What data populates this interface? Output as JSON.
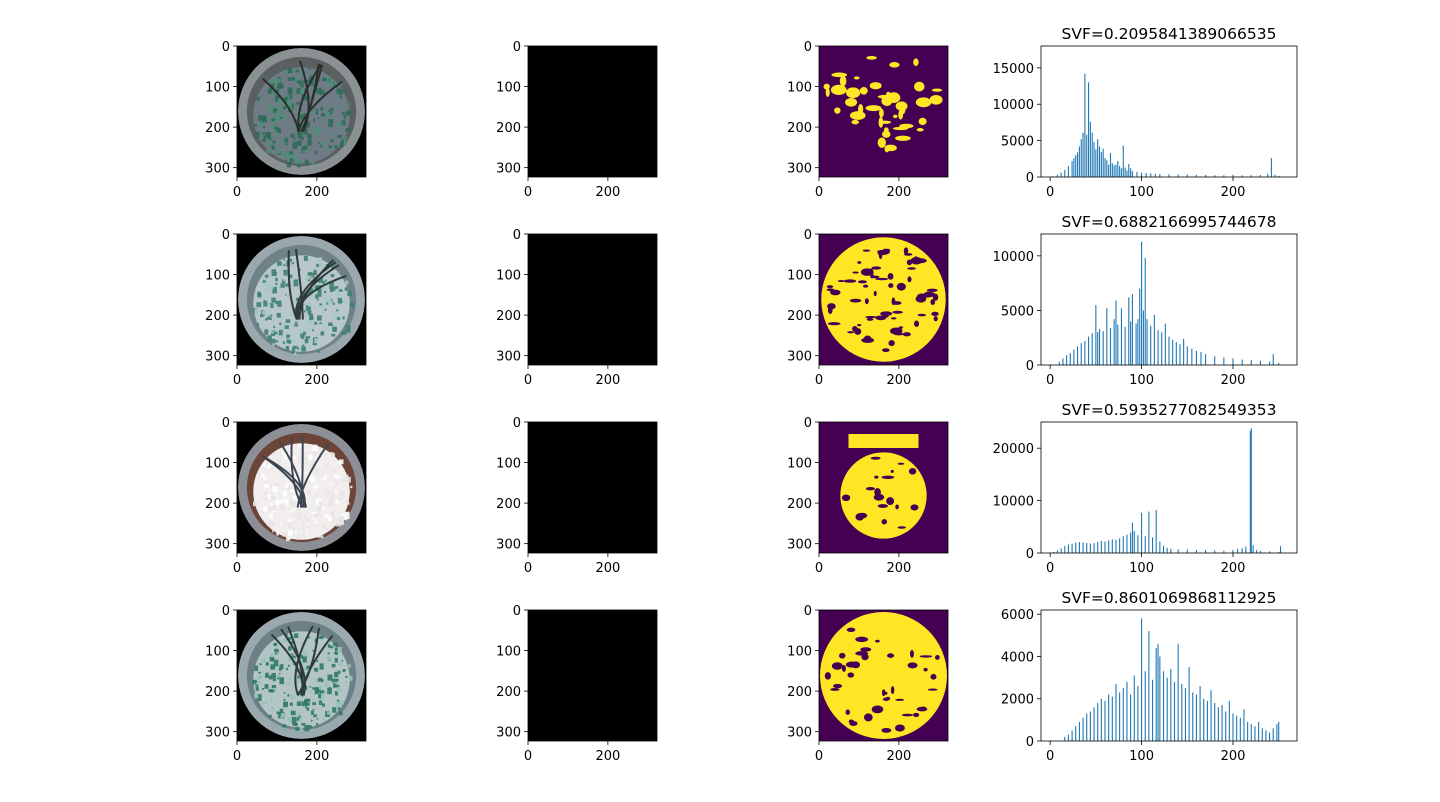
{
  "figure": {
    "rows": 4,
    "columns": [
      "fisheye-photo",
      "smoothed-photo",
      "sky-mask",
      "histogram"
    ]
  },
  "image_panels": {
    "x_ticks": [
      0,
      200
    ],
    "y_ticks": [
      0,
      100,
      200,
      300
    ],
    "extent": 323
  },
  "colors": {
    "sky": "#fde725",
    "non_sky": "#440154",
    "hist_bar": "#1f77b4",
    "background": "#000000"
  },
  "rows": [
    {
      "photo_scene": "green-canopy",
      "photo_colors": {
        "bg": "#2f3a37",
        "ring": "#8a9192",
        "ring_inner": "#59605f",
        "leaves": "#2f6b56",
        "leaf_hi": "#4d8f77",
        "trunk": "#2c2e2c",
        "sky": "#6f7c86"
      },
      "smooth_colors": {
        "bg": "#3c4744",
        "ring": "#8b9395",
        "ring_inner": "#5d6664",
        "leaves": "#3b6f60",
        "leaf_hi": "#58917f",
        "trunk": "#323634",
        "sky": "#7b878e"
      },
      "sky_fraction_note": "sparse",
      "chart_data": {
        "type": "bar",
        "title": "SVF=0.2095841389066535",
        "xlim": [
          -10,
          270
        ],
        "ylim": [
          0,
          18000
        ],
        "xticks": [
          0,
          100,
          200
        ],
        "yticks": [
          0,
          5000,
          10000,
          15000
        ],
        "x": [
          3,
          8,
          12,
          16,
          20,
          24,
          26,
          28,
          30,
          32,
          34,
          36,
          38,
          40,
          42,
          44,
          46,
          48,
          50,
          52,
          54,
          56,
          58,
          60,
          62,
          64,
          66,
          68,
          70,
          72,
          74,
          76,
          78,
          80,
          82,
          84,
          86,
          88,
          90,
          95,
          100,
          105,
          110,
          115,
          120,
          130,
          140,
          150,
          160,
          170,
          180,
          190,
          200,
          210,
          220,
          230,
          238,
          242,
          246,
          250
        ],
        "values": [
          100,
          300,
          600,
          1000,
          1500,
          2200,
          2600,
          3000,
          3400,
          4200,
          5200,
          6100,
          14200,
          5800,
          13000,
          7600,
          6100,
          4800,
          3800,
          5200,
          4200,
          3400,
          3900,
          2600,
          2300,
          1700,
          3300,
          1900,
          1600,
          1700,
          2200,
          1500,
          1200,
          4300,
          1300,
          900,
          1800,
          1200,
          800,
          700,
          600,
          550,
          500,
          450,
          400,
          380,
          350,
          320,
          300,
          280,
          260,
          240,
          300,
          230,
          250,
          280,
          450,
          2600,
          300,
          150
        ]
      }
    },
    {
      "photo_scene": "green-canopy-bright",
      "photo_colors": {
        "bg": "#4d6b6e",
        "ring": "#9aa7ac",
        "ring_inner": "#6e8287",
        "leaves": "#3f7f72",
        "leaf_hi": "#a8c9c5",
        "trunk": "#2d3a38",
        "sky": "#b7c7cc"
      },
      "smooth_colors": {
        "bg": "#57716f",
        "ring": "#9fadb1",
        "ring_inner": "#708487",
        "leaves": "#4b8679",
        "leaf_hi": "#8fb5ad",
        "trunk": "#34403f",
        "sky": "#a9bcc0"
      },
      "sky_fraction_note": "dense",
      "chart_data": {
        "type": "bar",
        "title": "SVF=0.6882166995744678",
        "xlim": [
          -10,
          270
        ],
        "ylim": [
          0,
          12000
        ],
        "xticks": [
          0,
          100,
          200
        ],
        "yticks": [
          0,
          5000,
          10000
        ],
        "x": [
          10,
          14,
          18,
          22,
          26,
          30,
          34,
          38,
          42,
          46,
          50,
          52,
          54,
          58,
          62,
          66,
          70,
          72,
          74,
          78,
          82,
          86,
          88,
          90,
          94,
          96,
          98,
          100,
          102,
          104,
          106,
          110,
          114,
          118,
          122,
          126,
          130,
          134,
          138,
          142,
          146,
          150,
          155,
          160,
          165,
          170,
          180,
          190,
          200,
          210,
          220,
          230,
          240,
          244,
          250
        ],
        "values": [
          300,
          600,
          900,
          1100,
          1400,
          1700,
          2000,
          2200,
          2600,
          2900,
          5500,
          3000,
          3300,
          3100,
          5200,
          3400,
          4200,
          5900,
          3700,
          5200,
          3500,
          6200,
          4000,
          6500,
          3800,
          4200,
          7000,
          11300,
          5000,
          9800,
          4200,
          3600,
          4600,
          3200,
          3000,
          3800,
          2600,
          2300,
          2100,
          1900,
          2400,
          1700,
          1500,
          1300,
          1200,
          1000,
          800,
          700,
          600,
          500,
          450,
          400,
          300,
          1000,
          200
        ]
      }
    },
    {
      "photo_scene": "white-sky-bare-branches",
      "photo_colors": {
        "bg": "#5a6068",
        "ring": "#8c9096",
        "ring_inner": "#6c4438",
        "leaves": "#e9e6e6",
        "leaf_hi": "#ffffff",
        "trunk": "#3c4753",
        "sky": "#f2eeee"
      },
      "smooth_colors": {
        "bg": "#646a71",
        "ring": "#939aa1",
        "ring_inner": "#8a5a4f",
        "leaves": "#dcdadc",
        "leaf_hi": "#eeecee",
        "trunk": "#4a5663",
        "sky": "#e2e0e3"
      },
      "sky_fraction_note": "center-disc",
      "chart_data": {
        "type": "bar",
        "title": "SVF=0.5935277082549353",
        "xlim": [
          -10,
          270
        ],
        "ylim": [
          0,
          25000
        ],
        "xticks": [
          0,
          100,
          200
        ],
        "yticks": [
          0,
          10000,
          20000
        ],
        "x": [
          4,
          8,
          12,
          16,
          20,
          24,
          28,
          32,
          36,
          40,
          44,
          48,
          52,
          56,
          60,
          64,
          68,
          72,
          76,
          80,
          84,
          88,
          90,
          92,
          96,
          100,
          104,
          108,
          112,
          116,
          120,
          124,
          128,
          132,
          140,
          150,
          160,
          170,
          180,
          190,
          200,
          205,
          210,
          214,
          219,
          220,
          222,
          226,
          230,
          240,
          250,
          252
        ],
        "values": [
          200,
          500,
          900,
          1300,
          1600,
          1800,
          2000,
          2100,
          2000,
          1900,
          1800,
          1900,
          2100,
          2300,
          2200,
          2400,
          2600,
          2500,
          2800,
          3200,
          3500,
          3900,
          5800,
          4200,
          3400,
          7700,
          3200,
          7900,
          3000,
          8200,
          2200,
          1400,
          1000,
          800,
          700,
          650,
          600,
          550,
          500,
          450,
          600,
          800,
          900,
          1200,
          23300,
          23800,
          1500,
          600,
          400,
          300,
          200,
          1300
        ]
      }
    },
    {
      "photo_scene": "green-canopy-wide",
      "photo_colors": {
        "bg": "#4c6168",
        "ring": "#9aa9ae",
        "ring_inner": "#6d8086",
        "leaves": "#2f7a62",
        "leaf_hi": "#9cc1b6",
        "trunk": "#2d3b38",
        "sky": "#b4c5c8"
      },
      "smooth_colors": {
        "bg": "#566a70",
        "ring": "#a2afb3",
        "ring_inner": "#738589",
        "leaves": "#3f8570",
        "leaf_hi": "#88b3a5",
        "trunk": "#344240",
        "sky": "#a7babd"
      },
      "sky_fraction_note": "full-disc",
      "chart_data": {
        "type": "bar",
        "title": "SVF=0.8601069868112925",
        "xlim": [
          -10,
          270
        ],
        "ylim": [
          0,
          6200
        ],
        "xticks": [
          0,
          100,
          200
        ],
        "yticks": [
          0,
          2000,
          4000,
          6000
        ],
        "x": [
          16,
          20,
          24,
          28,
          32,
          36,
          40,
          44,
          48,
          52,
          56,
          60,
          64,
          68,
          72,
          76,
          80,
          84,
          88,
          92,
          96,
          100,
          104,
          108,
          112,
          116,
          118,
          120,
          124,
          128,
          132,
          136,
          140,
          144,
          148,
          152,
          156,
          160,
          164,
          168,
          172,
          176,
          180,
          184,
          188,
          192,
          196,
          200,
          204,
          208,
          212,
          216,
          220,
          224,
          228,
          232,
          236,
          240,
          244,
          248,
          250
        ],
        "values": [
          200,
          300,
          500,
          700,
          900,
          1100,
          1300,
          1400,
          1600,
          1800,
          2000,
          1900,
          2200,
          2100,
          2700,
          2300,
          2500,
          2800,
          2200,
          3100,
          2600,
          5800,
          3300,
          5200,
          2900,
          4400,
          4600,
          4000,
          3300,
          3000,
          3400,
          2800,
          4600,
          2700,
          2500,
          3500,
          2300,
          2200,
          2600,
          2000,
          1900,
          2400,
          1800,
          1600,
          1700,
          1400,
          1900,
          1300,
          1200,
          1100,
          1500,
          900,
          800,
          700,
          900,
          600,
          500,
          400,
          600,
          800,
          900
        ]
      }
    }
  ]
}
